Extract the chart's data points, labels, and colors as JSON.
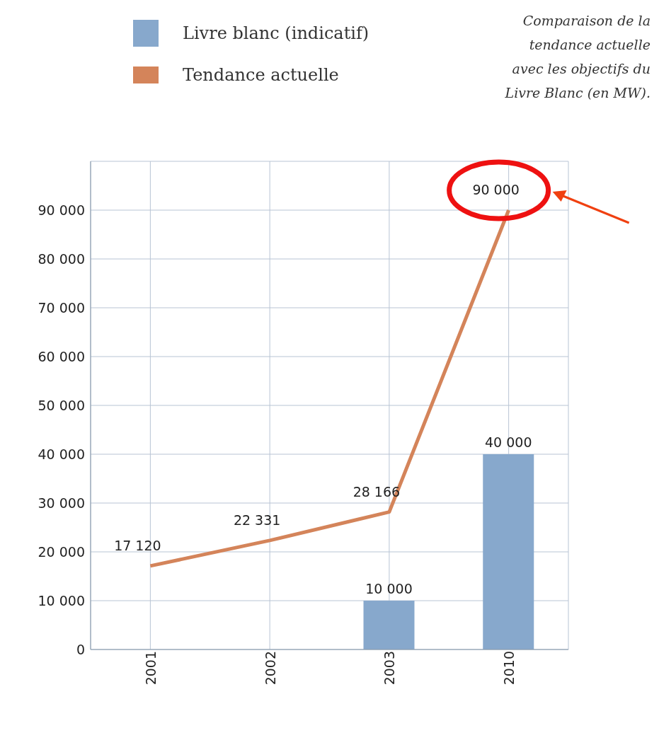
{
  "chart_data": {
    "type": "bar",
    "title": "Comparaison de la tendance actuelle avec les objectifs du Livre Blanc (en MW).",
    "categories": [
      "2001",
      "2002",
      "2003",
      "2010"
    ],
    "series": [
      {
        "name": "Livre blanc (indicatif)",
        "color": "#87a8cc",
        "values": [
          null,
          null,
          10000,
          40000
        ],
        "value_labels": [
          null,
          null,
          "10 000",
          "40 000"
        ]
      },
      {
        "name": "Tendance actuelle",
        "type": "line",
        "color": "#d4845a",
        "values": [
          17120,
          22331,
          28166,
          90000
        ],
        "value_labels": [
          "17 120",
          "22 331",
          "28 166",
          "90 000"
        ]
      }
    ],
    "ylim": [
      0,
      100000
    ],
    "yticks": [
      {
        "value": 0,
        "label": "0"
      },
      {
        "value": 10000,
        "label": "10 000"
      },
      {
        "value": 20000,
        "label": "20 000"
      },
      {
        "value": 30000,
        "label": "30 000"
      },
      {
        "value": 40000,
        "label": "40 000"
      },
      {
        "value": 50000,
        "label": "50 000"
      },
      {
        "value": 60000,
        "label": "60 000"
      },
      {
        "value": 70000,
        "label": "70 000"
      },
      {
        "value": 80000,
        "label": "80 000"
      },
      {
        "value": 90000,
        "label": "90 000"
      }
    ],
    "grid": true,
    "legend": "top left",
    "marker": "none",
    "line_style": "solid"
  }
}
